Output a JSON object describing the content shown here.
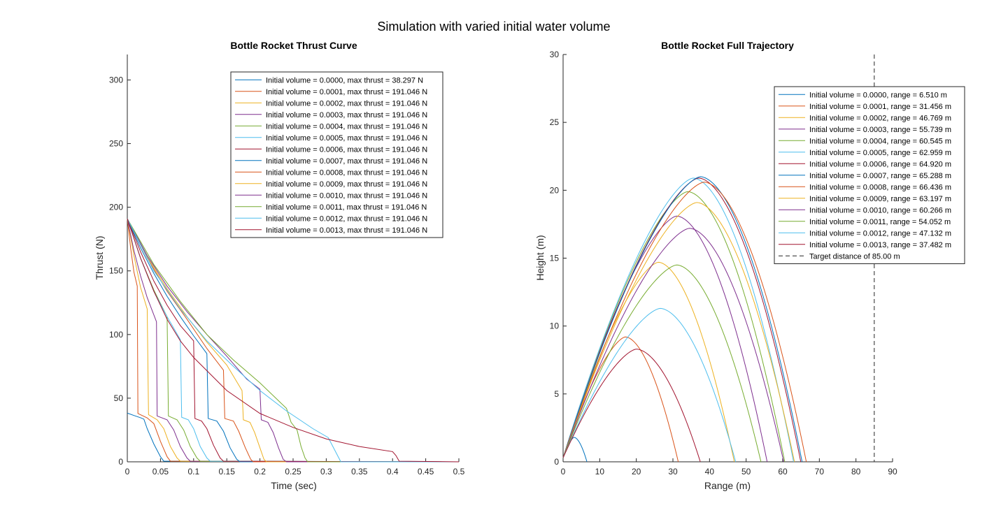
{
  "figure": {
    "title": "Simulation with varied initial water volume"
  },
  "colors": [
    "#0072BD",
    "#D95319",
    "#EDB120",
    "#7E2F8E",
    "#77AC30",
    "#4DBEEE",
    "#A2142F"
  ],
  "chart_data": [
    {
      "type": "line",
      "title": "Bottle Rocket Thrust Curve",
      "xlabel": "Time (sec)",
      "ylabel": "Thrust (N)",
      "xlim": [
        0,
        0.5
      ],
      "ylim": [
        0,
        320
      ],
      "xticks": [
        0,
        0.05,
        0.1,
        0.15,
        0.2,
        0.25,
        0.3,
        0.35,
        0.4,
        0.45,
        0.5
      ],
      "xtick_labels": [
        "0",
        "0.05",
        "0.1",
        "0.15",
        "0.2",
        "0.25",
        "0.3",
        "0.35",
        "0.4",
        "0.45",
        "0.5"
      ],
      "yticks": [
        0,
        50,
        100,
        150,
        200,
        250,
        300
      ],
      "ytick_labels": [
        "0",
        "50",
        "100",
        "150",
        "200",
        "250",
        "300"
      ],
      "grid": false,
      "legend_position": "top-right",
      "series": [
        {
          "name": "Initial volume = 0.0000, max thrust = 38.297 N",
          "points": [
            [
              0,
              38.3
            ],
            [
              0.01,
              36.4
            ],
            [
              0.02,
              34.6
            ],
            [
              0.025,
              33.5
            ],
            [
              0.03,
              26
            ],
            [
              0.04,
              14
            ],
            [
              0.05,
              4
            ],
            [
              0.055,
              0.5
            ],
            [
              0.5,
              0
            ]
          ]
        },
        {
          "name": "Initial volume = 0.0001, max thrust = 191.046 N",
          "points": [
            [
              0,
              191
            ],
            [
              0.005,
              168
            ],
            [
              0.01,
              149
            ],
            [
              0.015,
              138
            ],
            [
              0.016,
              38
            ],
            [
              0.03,
              34.5
            ],
            [
              0.04,
              30
            ],
            [
              0.05,
              16
            ],
            [
              0.06,
              4
            ],
            [
              0.065,
              0.5
            ],
            [
              0.5,
              0
            ]
          ]
        },
        {
          "name": "Initial volume = 0.0002, max thrust = 191.046 N",
          "points": [
            [
              0,
              191
            ],
            [
              0.01,
              162
            ],
            [
              0.02,
              137
            ],
            [
              0.03,
              120
            ],
            [
              0.032,
              37
            ],
            [
              0.045,
              33
            ],
            [
              0.055,
              26
            ],
            [
              0.065,
              12
            ],
            [
              0.075,
              3
            ],
            [
              0.08,
              0.5
            ],
            [
              0.5,
              0
            ]
          ]
        },
        {
          "name": "Initial volume = 0.0003, max thrust = 191.046 N",
          "points": [
            [
              0,
              191
            ],
            [
              0.01,
              166
            ],
            [
              0.02,
              146
            ],
            [
              0.03,
              129
            ],
            [
              0.044,
              110
            ],
            [
              0.045,
              36
            ],
            [
              0.06,
              33
            ],
            [
              0.07,
              25
            ],
            [
              0.08,
              12
            ],
            [
              0.09,
              3
            ],
            [
              0.095,
              0.5
            ],
            [
              0.5,
              0
            ]
          ]
        },
        {
          "name": "Initial volume = 0.0004, max thrust = 191.046 N",
          "points": [
            [
              0,
              191
            ],
            [
              0.02,
              160
            ],
            [
              0.04,
              135
            ],
            [
              0.06,
              114
            ],
            [
              0.062,
              36
            ],
            [
              0.075,
              33
            ],
            [
              0.085,
              25
            ],
            [
              0.095,
              12
            ],
            [
              0.105,
              3
            ],
            [
              0.11,
              0.5
            ],
            [
              0.5,
              0
            ]
          ]
        },
        {
          "name": "Initial volume = 0.0005, max thrust = 191.046 N",
          "points": [
            [
              0,
              191
            ],
            [
              0.02,
              160
            ],
            [
              0.04,
              134
            ],
            [
              0.06,
              114
            ],
            [
              0.08,
              96
            ],
            [
              0.082,
              35
            ],
            [
              0.092,
              33
            ],
            [
              0.1,
              26
            ],
            [
              0.11,
              12
            ],
            [
              0.12,
              3
            ],
            [
              0.125,
              0.5
            ],
            [
              0.5,
              0
            ]
          ]
        },
        {
          "name": "Initial volume = 0.0006, max thrust = 191.046 N",
          "points": [
            [
              0,
              191
            ],
            [
              0.02,
              165
            ],
            [
              0.04,
              142
            ],
            [
              0.06,
              123
            ],
            [
              0.08,
              107
            ],
            [
              0.1,
              95
            ],
            [
              0.102,
              34
            ],
            [
              0.112,
              32
            ],
            [
              0.12,
              26
            ],
            [
              0.13,
              13
            ],
            [
              0.14,
              3
            ],
            [
              0.145,
              0.5
            ],
            [
              0.5,
              0
            ]
          ]
        },
        {
          "name": "Initial volume = 0.0007, max thrust = 191.046 N",
          "points": [
            [
              0,
              191
            ],
            [
              0.02,
              168
            ],
            [
              0.04,
              148
            ],
            [
              0.06,
              130
            ],
            [
              0.08,
              114
            ],
            [
              0.1,
              99
            ],
            [
              0.12,
              85
            ],
            [
              0.122,
              34
            ],
            [
              0.135,
              32
            ],
            [
              0.145,
              24
            ],
            [
              0.155,
              11
            ],
            [
              0.165,
              2
            ],
            [
              0.17,
              0
            ],
            [
              0.5,
              0
            ]
          ]
        },
        {
          "name": "Initial volume = 0.0008, max thrust = 191.046 N",
          "points": [
            [
              0,
              191
            ],
            [
              0.03,
              160
            ],
            [
              0.06,
              134
            ],
            [
              0.09,
              112
            ],
            [
              0.12,
              89
            ],
            [
              0.145,
              72
            ],
            [
              0.147,
              34
            ],
            [
              0.16,
              32
            ],
            [
              0.168,
              24
            ],
            [
              0.178,
              11
            ],
            [
              0.186,
              2
            ],
            [
              0.19,
              0
            ],
            [
              0.5,
              0
            ]
          ]
        },
        {
          "name": "Initial volume = 0.0009, max thrust = 191.046 N",
          "points": [
            [
              0,
              191
            ],
            [
              0.03,
              161
            ],
            [
              0.06,
              136
            ],
            [
              0.09,
              114
            ],
            [
              0.12,
              94
            ],
            [
              0.15,
              76
            ],
            [
              0.173,
              56
            ],
            [
              0.175,
              33
            ],
            [
              0.185,
              31
            ],
            [
              0.192,
              23
            ],
            [
              0.2,
              11
            ],
            [
              0.206,
              2
            ],
            [
              0.21,
              0
            ],
            [
              0.5,
              0
            ]
          ]
        },
        {
          "name": "Initial volume = 0.0010, max thrust = 191.046 N",
          "points": [
            [
              0,
              191
            ],
            [
              0.03,
              162
            ],
            [
              0.06,
              138
            ],
            [
              0.09,
              118
            ],
            [
              0.12,
              100
            ],
            [
              0.15,
              83
            ],
            [
              0.18,
              65
            ],
            [
              0.2,
              57
            ],
            [
              0.202,
              33
            ],
            [
              0.212,
              31
            ],
            [
              0.22,
              23
            ],
            [
              0.228,
              11
            ],
            [
              0.235,
              2
            ],
            [
              0.24,
              0
            ],
            [
              0.5,
              0
            ]
          ]
        },
        {
          "name": "Initial volume = 0.0011, max thrust = 191.046 N",
          "points": [
            [
              0,
              191
            ],
            [
              0.04,
              155
            ],
            [
              0.08,
              126
            ],
            [
              0.12,
              100
            ],
            [
              0.16,
              80
            ],
            [
              0.2,
              62
            ],
            [
              0.24,
              42
            ],
            [
              0.247,
              31
            ],
            [
              0.256,
              25
            ],
            [
              0.262,
              12
            ],
            [
              0.268,
              3
            ],
            [
              0.272,
              0
            ],
            [
              0.5,
              0
            ]
          ]
        },
        {
          "name": "Initial volume = 0.0012, max thrust = 191.046 N",
          "points": [
            [
              0,
              191
            ],
            [
              0.04,
              150
            ],
            [
              0.08,
              120
            ],
            [
              0.12,
              95
            ],
            [
              0.16,
              75
            ],
            [
              0.2,
              56
            ],
            [
              0.24,
              40
            ],
            [
              0.28,
              26
            ],
            [
              0.303,
              19
            ],
            [
              0.31,
              12
            ],
            [
              0.318,
              4
            ],
            [
              0.322,
              0
            ],
            [
              0.5,
              0
            ]
          ]
        },
        {
          "name": "Initial volume = 0.0013, max thrust = 191.046 N",
          "points": [
            [
              0,
              191
            ],
            [
              0.02,
              160
            ],
            [
              0.04,
              134
            ],
            [
              0.06,
              112
            ],
            [
              0.08,
              95
            ],
            [
              0.1,
              82
            ],
            [
              0.15,
              56
            ],
            [
              0.2,
              38
            ],
            [
              0.25,
              27
            ],
            [
              0.3,
              18
            ],
            [
              0.35,
              12
            ],
            [
              0.4,
              8
            ],
            [
              0.405,
              5
            ],
            [
              0.41,
              0.5
            ],
            [
              0.5,
              0
            ]
          ]
        }
      ]
    },
    {
      "type": "line",
      "title": "Bottle Rocket Full Trajectory",
      "xlabel": "Range (m)",
      "ylabel": "Height (m)",
      "xlim": [
        0,
        90
      ],
      "ylim": [
        0,
        30
      ],
      "xticks": [
        0,
        10,
        20,
        30,
        40,
        50,
        60,
        70,
        80,
        90
      ],
      "xtick_labels": [
        "0",
        "10",
        "20",
        "30",
        "40",
        "50",
        "60",
        "70",
        "80",
        "90"
      ],
      "yticks": [
        0,
        5,
        10,
        15,
        20,
        25,
        30
      ],
      "ytick_labels": [
        "0",
        "5",
        "10",
        "15",
        "20",
        "25",
        "30"
      ],
      "grid": false,
      "legend_position": "top-right",
      "series": [
        {
          "name": "Initial volume = 0.0000, range = 6.510 m",
          "range": 6.51,
          "xpeak": 3.0,
          "peak": 1.8
        },
        {
          "name": "Initial volume = 0.0001, range = 31.456 m",
          "range": 31.456,
          "xpeak": 17.0,
          "peak": 9.2
        },
        {
          "name": "Initial volume = 0.0002, range = 46.769 m",
          "range": 46.769,
          "xpeak": 26.0,
          "peak": 14.7
        },
        {
          "name": "Initial volume = 0.0003, range = 55.739 m",
          "range": 55.739,
          "xpeak": 31.0,
          "peak": 18.1
        },
        {
          "name": "Initial volume = 0.0004, range = 60.545 m",
          "range": 60.545,
          "xpeak": 34.0,
          "peak": 19.9
        },
        {
          "name": "Initial volume = 0.0005, range = 62.959 m",
          "range": 62.959,
          "xpeak": 35.5,
          "peak": 20.9
        },
        {
          "name": "Initial volume = 0.0006, range = 64.920 m",
          "range": 64.92,
          "xpeak": 37.0,
          "peak": 20.9
        },
        {
          "name": "Initial volume = 0.0007, range = 65.288 m",
          "range": 65.288,
          "xpeak": 37.5,
          "peak": 21.0
        },
        {
          "name": "Initial volume = 0.0008, range = 66.436 m",
          "range": 66.436,
          "xpeak": 38.5,
          "peak": 20.6
        },
        {
          "name": "Initial volume = 0.0009, range = 63.197 m",
          "range": 63.197,
          "xpeak": 36.5,
          "peak": 19.1
        },
        {
          "name": "Initial volume = 0.0010, range = 60.266 m",
          "range": 60.266,
          "xpeak": 34.5,
          "peak": 17.2
        },
        {
          "name": "Initial volume = 0.0011, range = 54.052 m",
          "range": 54.052,
          "xpeak": 31.0,
          "peak": 14.5
        },
        {
          "name": "Initial volume = 0.0012, range = 47.132 m",
          "range": 47.132,
          "xpeak": 26.5,
          "peak": 11.3
        },
        {
          "name": "Initial volume = 0.0013, range = 37.482 m",
          "range": 37.482,
          "xpeak": 20.0,
          "peak": 8.3
        }
      ],
      "reference_line": {
        "name": "Target distance of 85.00 m",
        "x": 85,
        "style": "dashed",
        "color": "#262626"
      }
    }
  ]
}
